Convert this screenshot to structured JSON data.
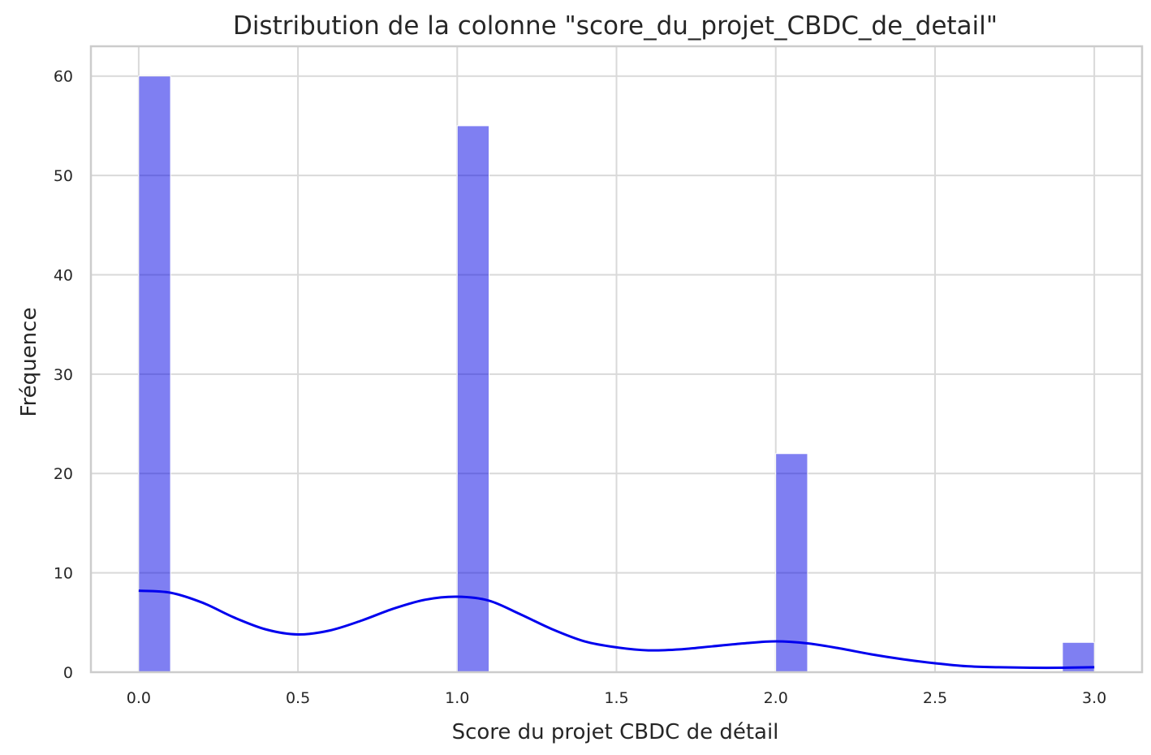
{
  "chart_data": {
    "type": "bar",
    "title": "Distribution de la colonne \"score_du_projet_CBDC_de_detail\"",
    "xlabel": "Score du projet CBDC de détail",
    "ylabel": "Fréquence",
    "xlim": [
      -0.15,
      3.15
    ],
    "ylim": [
      0,
      63
    ],
    "grid": true,
    "x_ticks": [
      "0.0",
      "0.5",
      "1.0",
      "1.5",
      "2.0",
      "2.5",
      "3.0"
    ],
    "y_ticks": [
      "0",
      "10",
      "20",
      "30",
      "40",
      "50",
      "60"
    ],
    "bins": [
      {
        "x0": 0.0,
        "x1": 0.1,
        "value": 60
      },
      {
        "x0": 1.0,
        "x1": 1.1,
        "value": 55
      },
      {
        "x0": 2.0,
        "x1": 2.1,
        "value": 22
      },
      {
        "x0": 2.9,
        "x1": 3.0,
        "value": 3
      }
    ],
    "kde": {
      "color": "#0000ee",
      "points": [
        [
          0.0,
          8.2
        ],
        [
          0.1,
          8.0
        ],
        [
          0.2,
          7.0
        ],
        [
          0.3,
          5.5
        ],
        [
          0.4,
          4.3
        ],
        [
          0.5,
          3.8
        ],
        [
          0.6,
          4.2
        ],
        [
          0.7,
          5.2
        ],
        [
          0.8,
          6.4
        ],
        [
          0.9,
          7.3
        ],
        [
          1.0,
          7.6
        ],
        [
          1.1,
          7.2
        ],
        [
          1.2,
          5.8
        ],
        [
          1.3,
          4.3
        ],
        [
          1.4,
          3.1
        ],
        [
          1.5,
          2.5
        ],
        [
          1.6,
          2.2
        ],
        [
          1.7,
          2.3
        ],
        [
          1.8,
          2.6
        ],
        [
          1.9,
          2.9
        ],
        [
          2.0,
          3.1
        ],
        [
          2.1,
          2.9
        ],
        [
          2.2,
          2.4
        ],
        [
          2.3,
          1.8
        ],
        [
          2.4,
          1.3
        ],
        [
          2.5,
          0.9
        ],
        [
          2.6,
          0.6
        ],
        [
          2.7,
          0.5
        ],
        [
          2.8,
          0.45
        ],
        [
          2.9,
          0.45
        ],
        [
          3.0,
          0.5
        ]
      ]
    },
    "bar_color": "#0000e6"
  }
}
